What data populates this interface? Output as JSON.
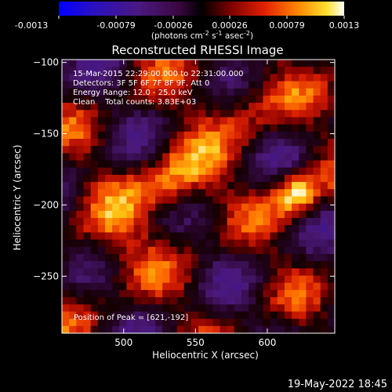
{
  "colorbar": {
    "tick_labels": [
      "-0.0013",
      "-0.00079",
      "-0.00026",
      "0.00026",
      "0.00079",
      "0.0013"
    ],
    "unit_main": "(photons cm",
    "unit_exp1": "-2",
    "unit_mid": " s",
    "unit_exp2": "-1",
    "unit_tail": " asec",
    "unit_exp3": "-2",
    "unit_close": ")",
    "range": [
      -0.0013,
      0.0013
    ]
  },
  "title": "Reconstructed RHESSI Image",
  "annotations": {
    "time_range": "15-Mar-2015 22:29:00.000 to 22:31:00.000",
    "detectors": "Detectors: 3F 5F 6F 7F 8F 9F, Att 0",
    "energy_range": "Energy Range: 12.0 - 25.0 keV",
    "clean_counts": "Clean    Total counts: 3.83E+03",
    "peak_position": "Position of Peak = [621,-192]"
  },
  "footer_timestamp": "19-May-2022 18:45",
  "chart_data": {
    "type": "heatmap",
    "title": "Reconstructed RHESSI Image",
    "xlabel": "Heliocentric X (arcsec)",
    "ylabel": "Heliocentric Y (arcsec)",
    "xlim": [
      457,
      647
    ],
    "ylim": [
      -290,
      -98
    ],
    "x_ticks": [
      500,
      550,
      600
    ],
    "y_ticks": [
      -100,
      -150,
      -200,
      -250
    ],
    "x_tick_labels": [
      "500",
      "550",
      "600"
    ],
    "y_tick_labels": [
      "−100",
      "−150",
      "−200",
      "−250"
    ],
    "colormap": "RHESSI red-temperature with blue/purple negative",
    "peak": {
      "x": 621,
      "y": -192
    },
    "bright_sources": [
      {
        "x": 621,
        "y": -192,
        "level": 1.0
      },
      {
        "x": 537,
        "y": -185,
        "level": 0.75
      },
      {
        "x": 490,
        "y": -225,
        "level": 0.5
      },
      {
        "x": 585,
        "y": -130,
        "level": 0.45
      }
    ],
    "grid": false
  }
}
